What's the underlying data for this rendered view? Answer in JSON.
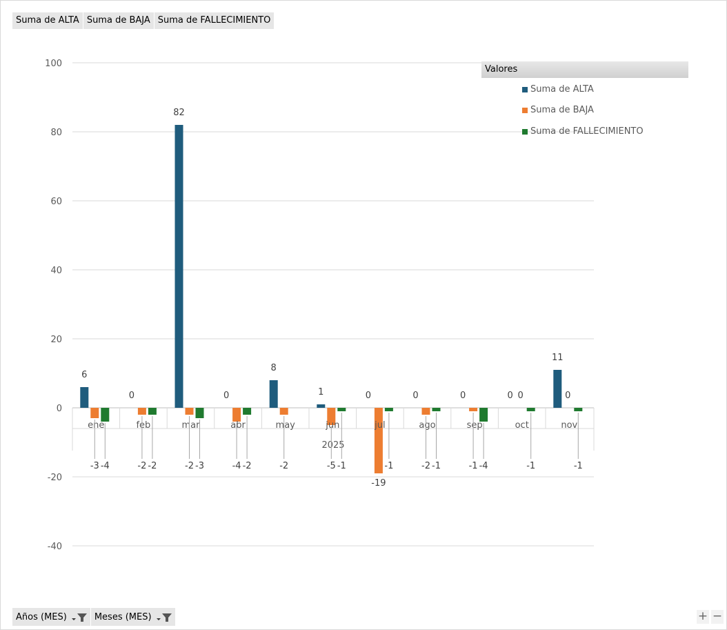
{
  "field_buttons": [
    "Suma de ALTA",
    "Suma de BAJA",
    "Suma de FALLECIMIENTO"
  ],
  "filter_buttons": [
    "Años (MES)",
    "Meses (MES)"
  ],
  "zoom": {
    "plus": "+",
    "minus": "−"
  },
  "legend": {
    "title": "Valores"
  },
  "colors": {
    "alta": "#1f5c7d",
    "baja": "#ed7d31",
    "fallecimiento": "#1f7a2f"
  },
  "chart_data": {
    "type": "bar",
    "categories": [
      "ene",
      "feb",
      "mar",
      "abr",
      "may",
      "jun",
      "jul",
      "ago",
      "sep",
      "oct",
      "nov"
    ],
    "group_label": "2025",
    "series": [
      {
        "name": "Suma de ALTA",
        "values": [
          6,
          0,
          82,
          0,
          8,
          1,
          0,
          0,
          0,
          0,
          11
        ]
      },
      {
        "name": "Suma de BAJA",
        "values": [
          -3,
          -2,
          -2,
          -4,
          -2,
          -5,
          -19,
          -2,
          -1,
          0,
          0
        ]
      },
      {
        "name": "Suma de FALLECIMIENTO",
        "values": [
          -4,
          -2,
          -3,
          -2,
          null,
          -1,
          -1,
          -1,
          -4,
          -1,
          -1
        ]
      }
    ],
    "ylim": [
      -40,
      100
    ],
    "yticks": [
      -40,
      -20,
      0,
      20,
      40,
      60,
      80,
      100
    ],
    "grid": true,
    "legend_position": "top-right"
  }
}
